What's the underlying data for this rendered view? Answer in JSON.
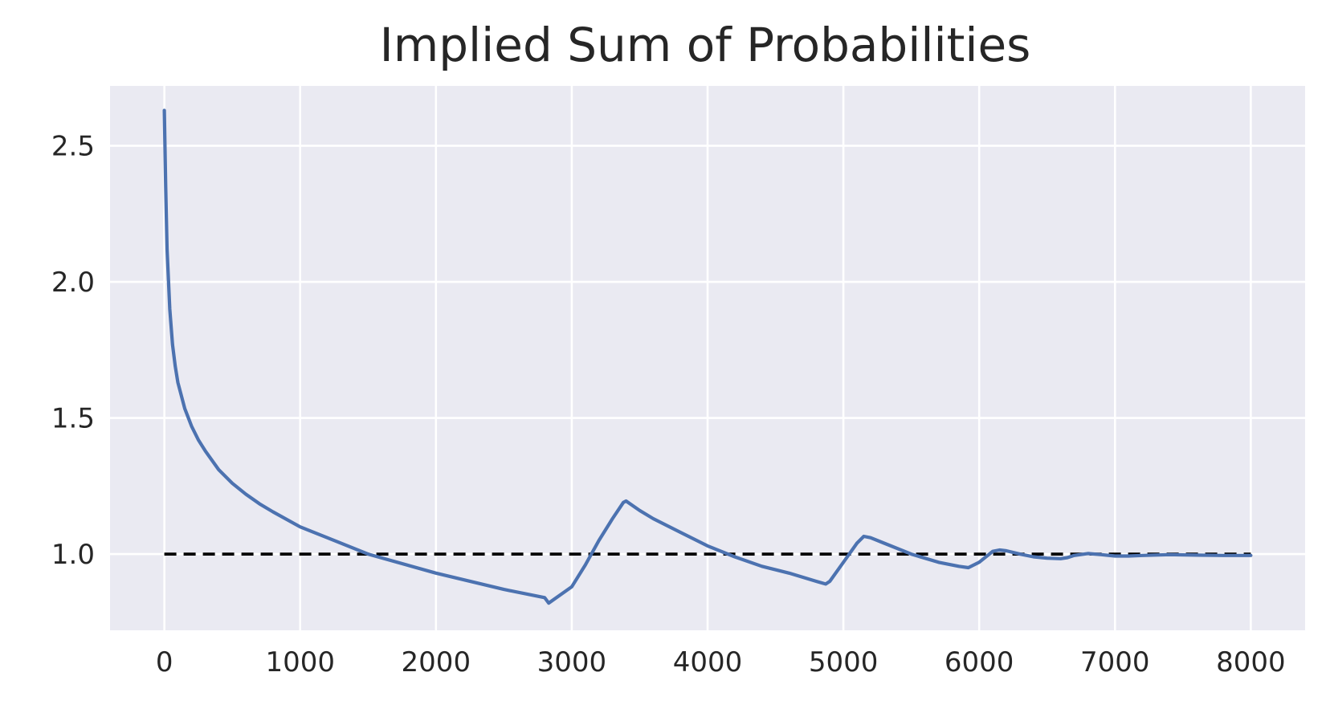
{
  "chart_data": {
    "type": "line",
    "title": "Implied Sum of Probabilities",
    "xlabel": "",
    "ylabel": "",
    "xlim": [
      -400,
      8400
    ],
    "ylim": [
      0.72,
      2.72
    ],
    "x_ticks": [
      0,
      1000,
      2000,
      3000,
      4000,
      5000,
      6000,
      7000,
      8000
    ],
    "x_tick_labels": [
      "0",
      "1000",
      "2000",
      "3000",
      "4000",
      "5000",
      "6000",
      "7000",
      "8000"
    ],
    "y_ticks": [
      1.0,
      1.5,
      2.0,
      2.5
    ],
    "y_tick_labels": [
      "1.0",
      "1.5",
      "2.0",
      "2.5"
    ],
    "grid": true,
    "legend": "none",
    "colors": {
      "plot_background": "#eaeaf2",
      "grid": "#ffffff",
      "series": "#4c72b0",
      "reference": "#000000"
    },
    "series": [
      {
        "style": "solid",
        "x": [
          0,
          10,
          20,
          40,
          60,
          80,
          100,
          150,
          200,
          250,
          300,
          400,
          500,
          600,
          700,
          800,
          1000,
          1200,
          1500,
          2000,
          2500,
          2800,
          2830,
          3000,
          3100,
          3200,
          3300,
          3380,
          3400,
          3500,
          3600,
          3800,
          4000,
          4200,
          4400,
          4600,
          4800,
          4870,
          4900,
          5000,
          5100,
          5150,
          5200,
          5300,
          5500,
          5700,
          5850,
          5920,
          6000,
          6050,
          6100,
          6150,
          6200,
          6300,
          6400,
          6500,
          6600,
          6650,
          6700,
          6800,
          6900,
          7000,
          7100,
          7200,
          7400,
          7600,
          7800,
          8000
        ],
        "values": [
          2.63,
          2.35,
          2.12,
          1.9,
          1.77,
          1.69,
          1.63,
          1.535,
          1.47,
          1.42,
          1.38,
          1.31,
          1.26,
          1.22,
          1.185,
          1.155,
          1.1,
          1.06,
          1.0,
          0.93,
          0.87,
          0.84,
          0.82,
          0.88,
          0.96,
          1.05,
          1.13,
          1.19,
          1.195,
          1.16,
          1.13,
          1.08,
          1.03,
          0.99,
          0.955,
          0.93,
          0.9,
          0.89,
          0.9,
          0.97,
          1.04,
          1.065,
          1.06,
          1.04,
          1.0,
          0.97,
          0.955,
          0.95,
          0.97,
          0.99,
          1.01,
          1.015,
          1.012,
          1.0,
          0.99,
          0.985,
          0.983,
          0.987,
          0.995,
          1.002,
          0.998,
          0.993,
          0.993,
          0.995,
          0.998,
          0.996,
          0.995,
          0.995
        ]
      },
      {
        "style": "dashed",
        "x": [
          0,
          8000
        ],
        "values": [
          1.0,
          1.0
        ]
      }
    ]
  }
}
